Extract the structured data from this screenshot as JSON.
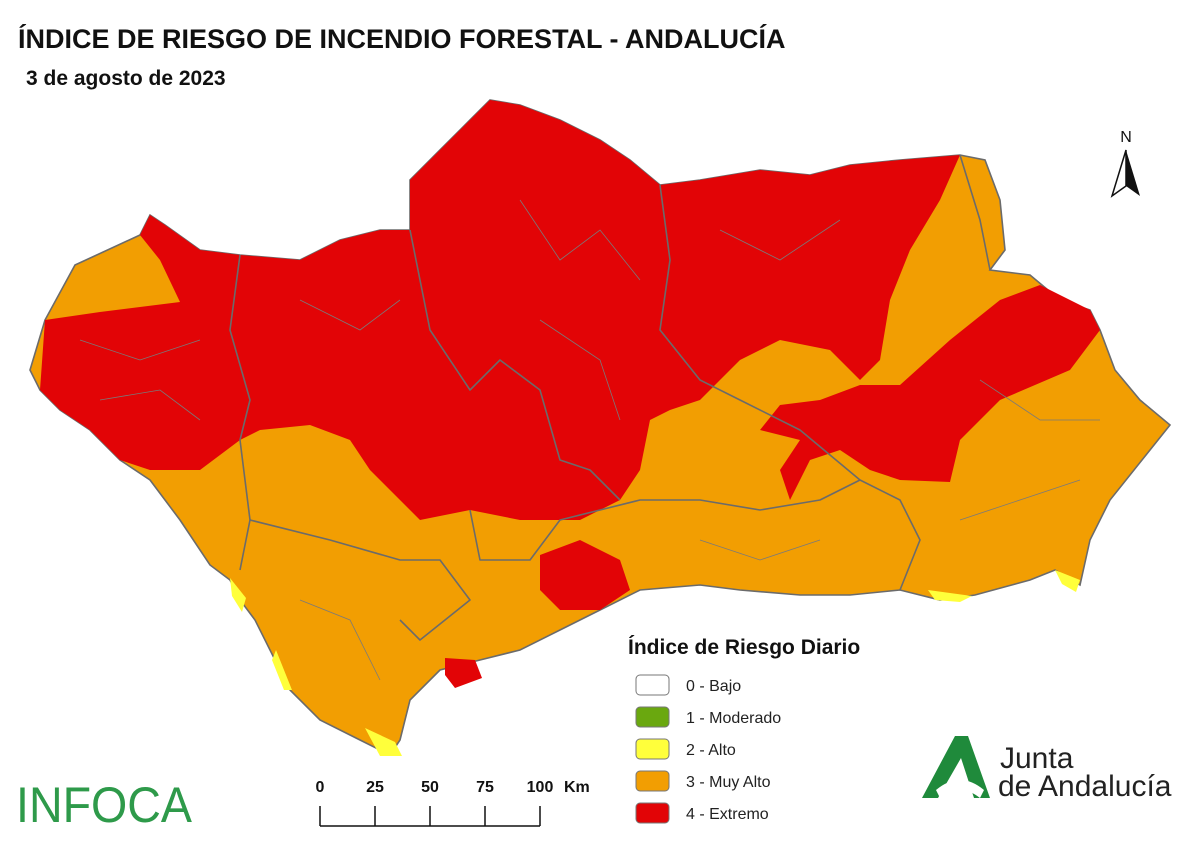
{
  "header": {
    "title": "ÍNDICE DE RIESGO DE INCENDIO FORESTAL - ANDALUCÍA",
    "date": "3 de agosto de 2023"
  },
  "legend": {
    "title": "Índice de Riesgo Diario",
    "items": [
      {
        "label": "0 - Bajo",
        "color": "#ffffff"
      },
      {
        "label": "1 - Moderado",
        "color": "#6aa80f"
      },
      {
        "label": "2 - Alto",
        "color": "#ffff3b"
      },
      {
        "label": "3 - Muy Alto",
        "color": "#f29e02"
      },
      {
        "label": "4 - Extremo",
        "color": "#e20406"
      }
    ]
  },
  "scale_bar": {
    "ticks": [
      0,
      25,
      50,
      75,
      100
    ],
    "unit": "Km"
  },
  "north": "N",
  "logos": {
    "infoca": "INFOCA",
    "junta_line1": "Junta",
    "junta_line2": "de Andalucía"
  }
}
